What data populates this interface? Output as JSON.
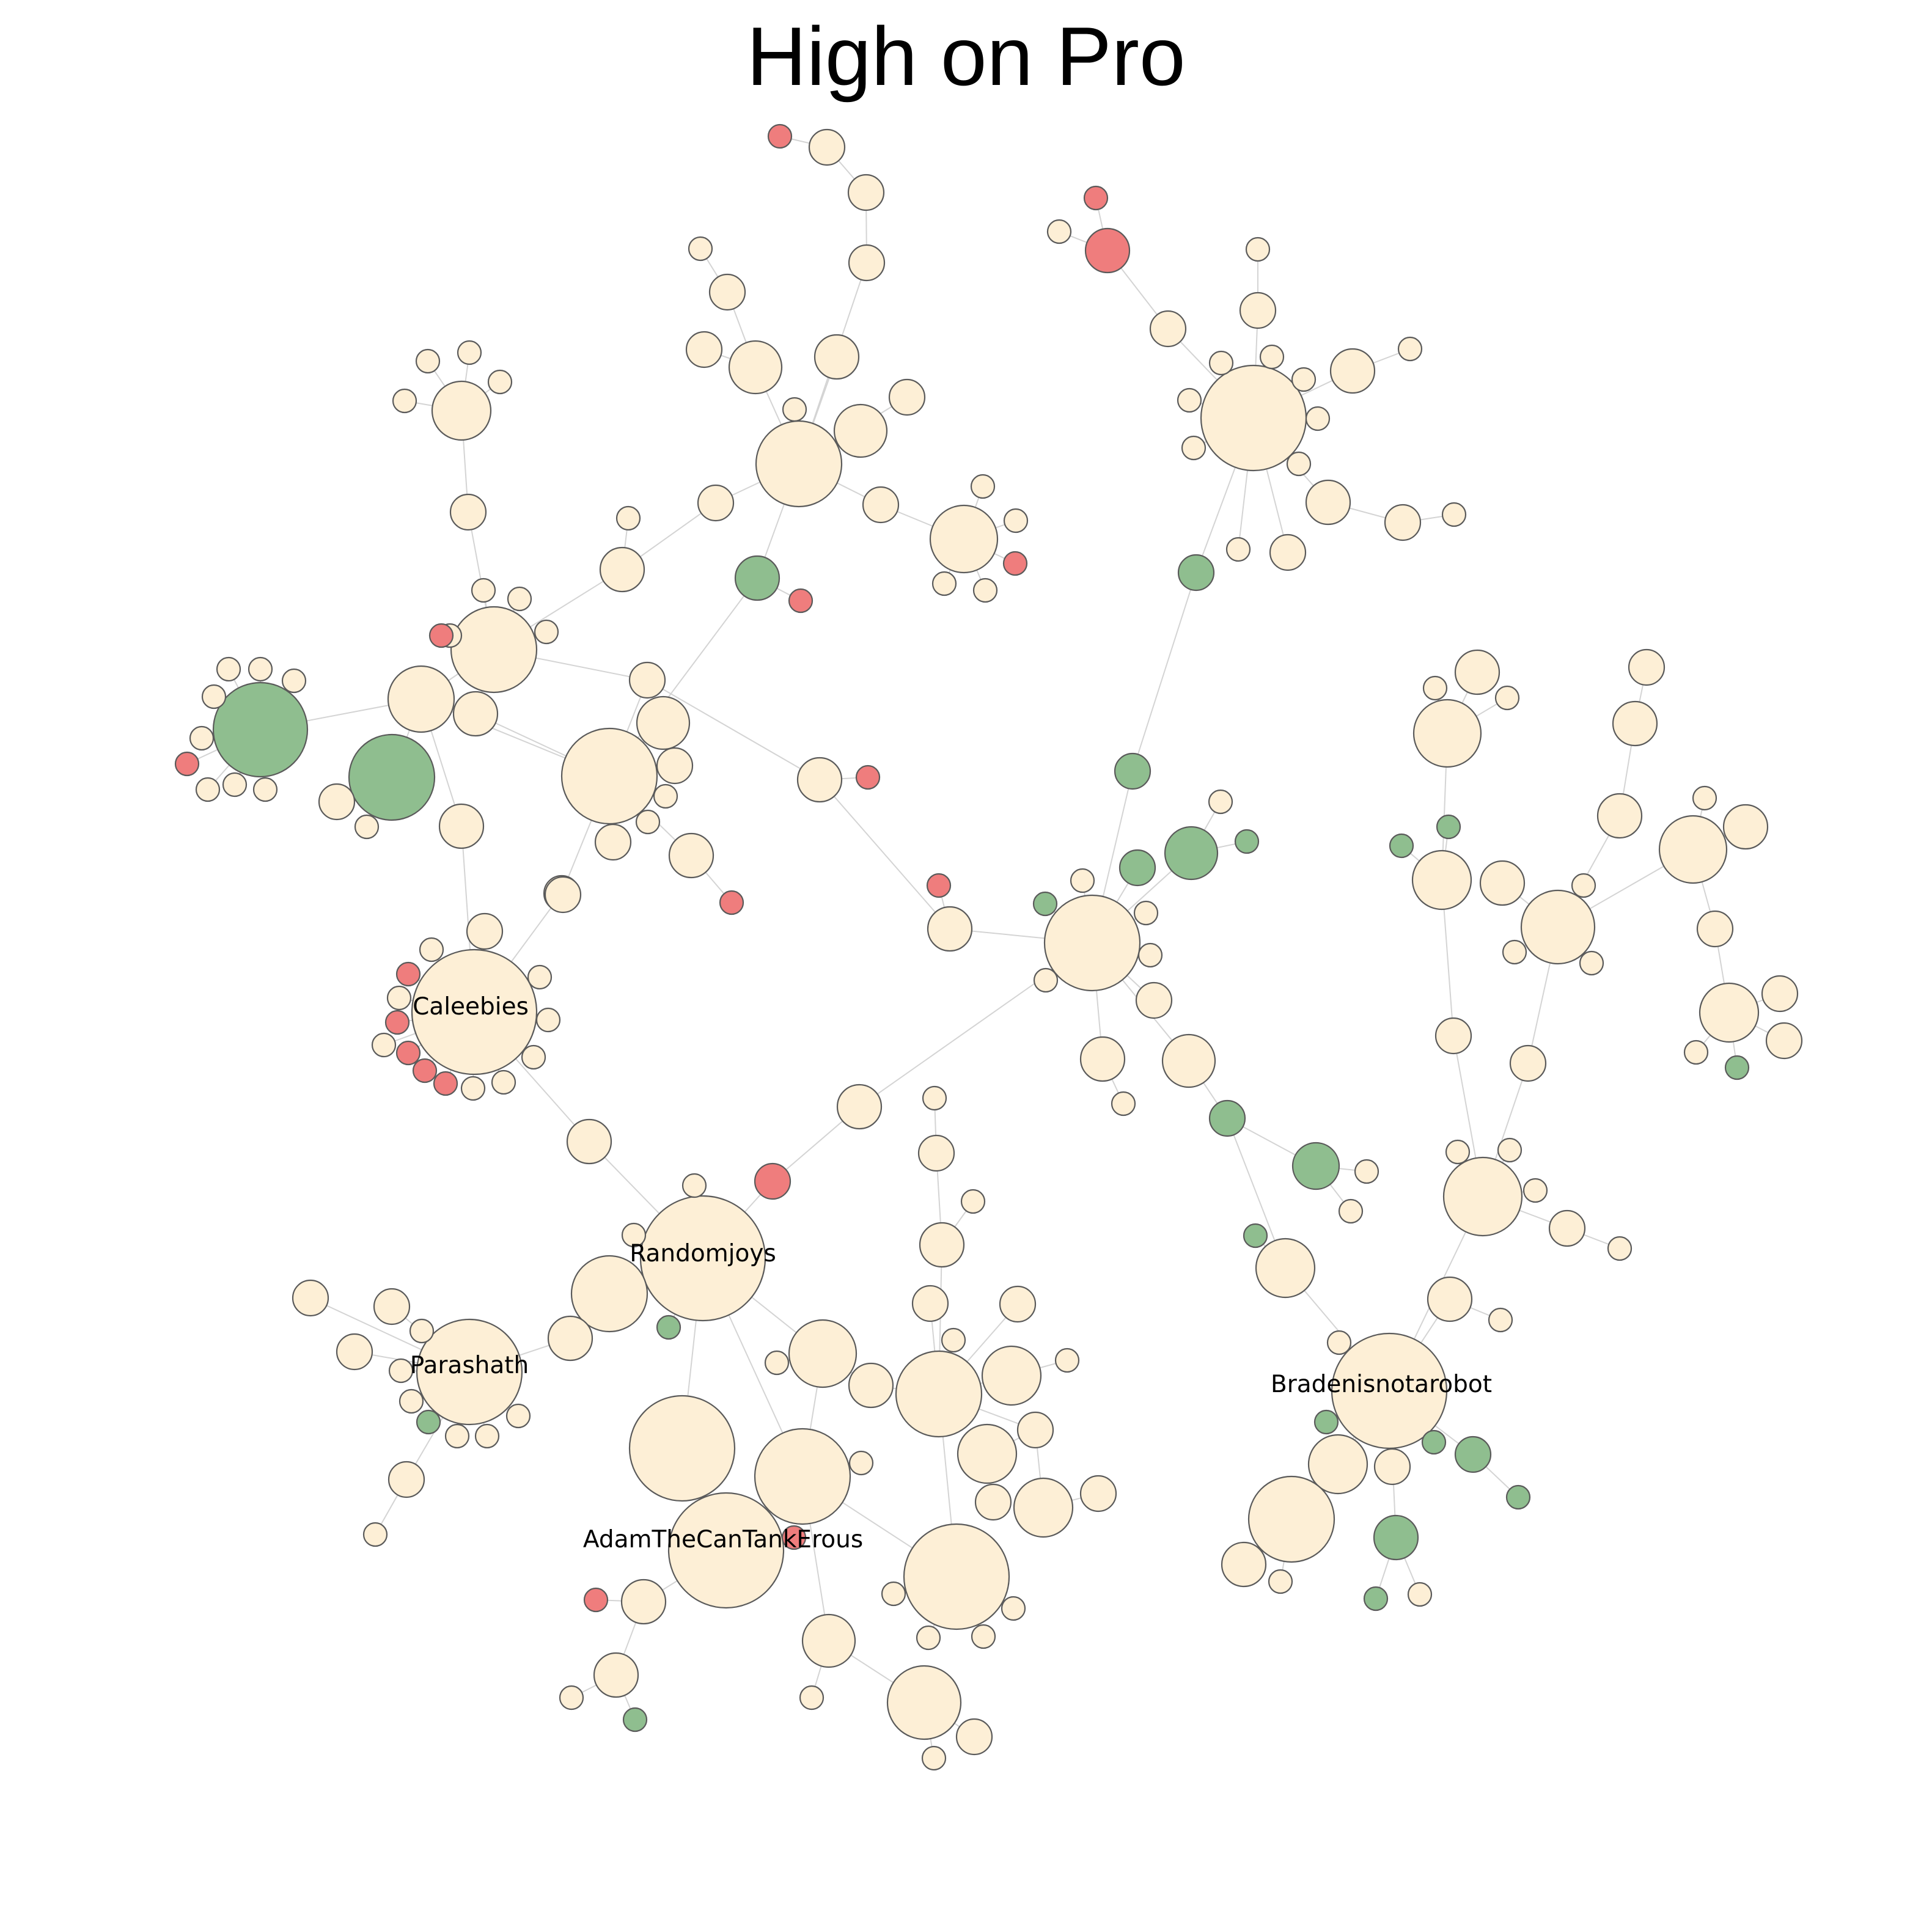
{
  "title": "High on Pro",
  "colors": {
    "default": "#fdefd6",
    "green": "#8fbe8f",
    "red": "#ef7d7d",
    "edge": "#d4d4d4"
  },
  "labels": {
    "caleebies": "Caleebies",
    "randomjoys": "Randomjoys",
    "parashath": "Parashath",
    "adam": "AdamTheCanTankErous",
    "braden": "Bradenisnotarobot"
  }
}
